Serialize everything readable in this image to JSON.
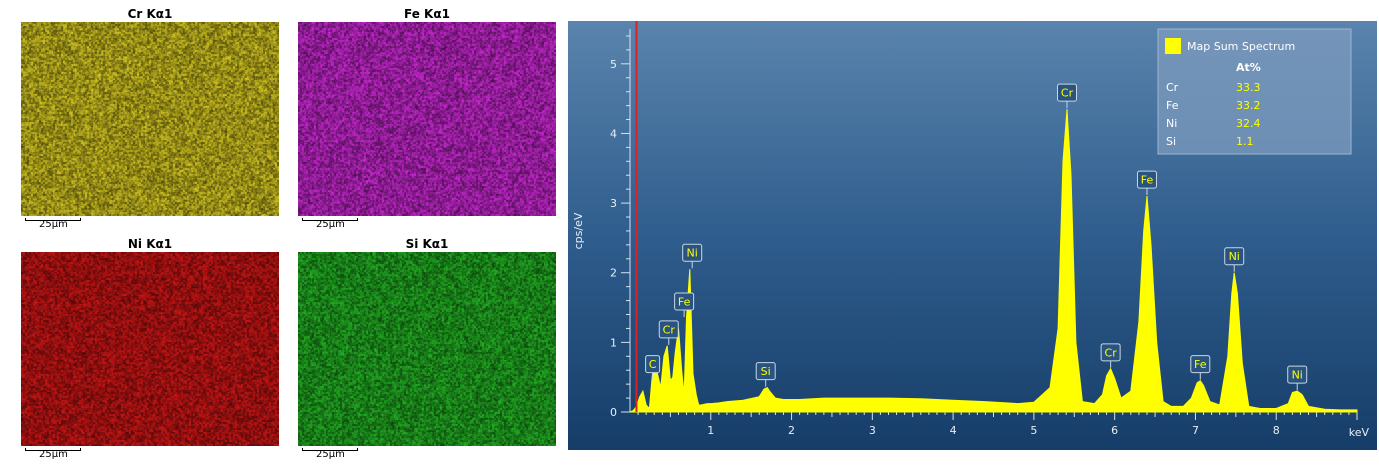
{
  "maps": [
    {
      "title": "Cr Kα1",
      "scale_label": "25µm",
      "color": "#b8ac1c",
      "seed": 11
    },
    {
      "title": "Fe Kα1",
      "scale_label": "25µm",
      "color": "#b023b8",
      "seed": 23
    },
    {
      "title": "Ni Kα1",
      "scale_label": "25µm",
      "color": "#b31313",
      "seed": 37
    },
    {
      "title": "Si Kα1",
      "scale_label": "25µm",
      "color": "#1e9a1e",
      "seed": 53
    }
  ],
  "chart_data": {
    "type": "area",
    "xlabel": "keV",
    "ylabel": "cps/eV",
    "xlim": [
      0.0,
      9.0
    ],
    "ylim": [
      0,
      5.5
    ],
    "xticks": [
      1,
      2,
      3,
      4,
      5,
      6,
      7,
      8
    ],
    "yticks": [
      0,
      1,
      2,
      3,
      4,
      5
    ],
    "marker_keV": 0.08,
    "series": [
      {
        "name": "Map Sum Spectrum",
        "color": "#ffff00",
        "x": [
          0.0,
          0.04,
          0.08,
          0.12,
          0.16,
          0.2,
          0.24,
          0.27,
          0.3,
          0.34,
          0.38,
          0.42,
          0.46,
          0.5,
          0.53,
          0.56,
          0.6,
          0.64,
          0.67,
          0.7,
          0.74,
          0.78,
          0.82,
          0.85,
          0.88,
          0.92,
          0.96,
          1.0,
          1.1,
          1.2,
          1.4,
          1.6,
          1.66,
          1.7,
          1.74,
          1.8,
          1.9,
          2.1,
          2.4,
          2.8,
          3.2,
          3.6,
          4.0,
          4.4,
          4.8,
          5.0,
          5.2,
          5.3,
          5.36,
          5.41,
          5.46,
          5.52,
          5.6,
          5.75,
          5.85,
          5.9,
          5.95,
          6.0,
          6.08,
          6.2,
          6.3,
          6.36,
          6.4,
          6.45,
          6.52,
          6.6,
          6.7,
          6.85,
          6.95,
          7.02,
          7.06,
          7.1,
          7.18,
          7.3,
          7.4,
          7.45,
          7.48,
          7.52,
          7.58,
          7.66,
          7.8,
          8.0,
          8.15,
          8.2,
          8.26,
          8.32,
          8.4,
          8.6,
          8.8,
          9.0
        ],
        "values": [
          0.0,
          0.02,
          0.08,
          0.22,
          0.3,
          0.1,
          0.05,
          0.45,
          0.8,
          0.55,
          0.35,
          0.8,
          0.95,
          0.45,
          0.5,
          0.85,
          1.2,
          0.6,
          0.25,
          1.35,
          2.05,
          0.55,
          0.25,
          0.1,
          0.1,
          0.11,
          0.12,
          0.12,
          0.13,
          0.15,
          0.17,
          0.22,
          0.33,
          0.35,
          0.28,
          0.2,
          0.18,
          0.18,
          0.2,
          0.2,
          0.2,
          0.19,
          0.17,
          0.15,
          0.12,
          0.14,
          0.35,
          1.2,
          3.6,
          4.35,
          3.4,
          1.0,
          0.15,
          0.12,
          0.25,
          0.52,
          0.62,
          0.48,
          0.2,
          0.3,
          1.3,
          2.6,
          3.1,
          2.4,
          1.0,
          0.15,
          0.08,
          0.08,
          0.2,
          0.42,
          0.45,
          0.38,
          0.15,
          0.1,
          0.8,
          1.7,
          2.0,
          1.7,
          0.7,
          0.08,
          0.05,
          0.05,
          0.12,
          0.28,
          0.3,
          0.25,
          0.08,
          0.04,
          0.03,
          0.03
        ]
      }
    ],
    "peak_labels": [
      {
        "label": "C",
        "x": 0.28,
        "y": 0.45
      },
      {
        "label": "Cr",
        "x": 0.48,
        "y": 0.95
      },
      {
        "label": "Fe",
        "x": 0.67,
        "y": 1.35
      },
      {
        "label": "Ni",
        "x": 0.77,
        "y": 2.05
      },
      {
        "label": "Si",
        "x": 1.68,
        "y": 0.35
      },
      {
        "label": "Cr",
        "x": 5.41,
        "y": 4.35
      },
      {
        "label": "Cr",
        "x": 5.95,
        "y": 0.62
      },
      {
        "label": "Fe",
        "x": 6.4,
        "y": 3.1
      },
      {
        "label": "Fe",
        "x": 7.06,
        "y": 0.45
      },
      {
        "label": "Ni",
        "x": 7.48,
        "y": 2.0
      },
      {
        "label": "Ni",
        "x": 8.26,
        "y": 0.3
      }
    ],
    "legend": {
      "placement": "top-right",
      "title": "Map Sum Spectrum",
      "column_header": "At%",
      "rows": [
        {
          "element": "Cr",
          "value": "33.3"
        },
        {
          "element": "Fe",
          "value": "33.2"
        },
        {
          "element": "Ni",
          "value": "32.4"
        },
        {
          "element": "Si",
          "value": "1.1"
        }
      ]
    }
  }
}
